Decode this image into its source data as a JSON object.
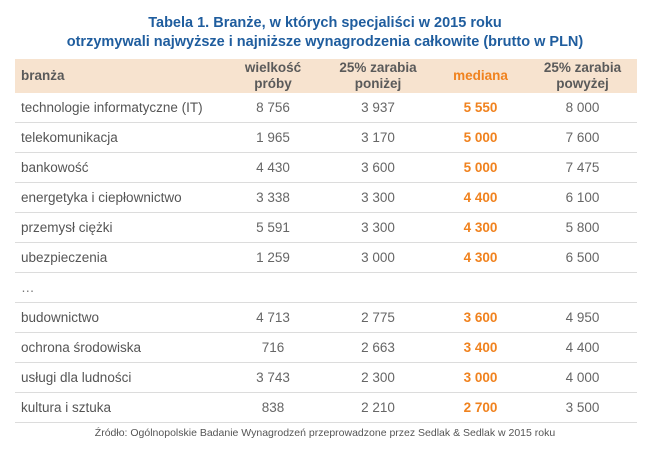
{
  "title": {
    "line1": "Tabela 1. Branże, w których specjaliści w 2015 roku",
    "line2": "otrzymywali najwyższe i najniższe wynagrodzenia całkowite (brutto w PLN)"
  },
  "table": {
    "headers": [
      "branża",
      "wielkość\npróby",
      "25% zarabia\nponiżej",
      "mediana",
      "25% zarabia\npowyżej"
    ],
    "rows": [
      [
        "technologie informatyczne (IT)",
        "8 756",
        "3 937",
        "5 550",
        "8 000"
      ],
      [
        "telekomunikacja",
        "1 965",
        "3 170",
        "5 000",
        "7 600"
      ],
      [
        "bankowość",
        "4 430",
        "3 600",
        "5 000",
        "7 475"
      ],
      [
        "energetyka i ciepłownictwo",
        "3 338",
        "3 300",
        "4 400",
        "6 100"
      ],
      [
        "przemysł ciężki",
        "5 591",
        "3 300",
        "4 300",
        "5 800"
      ],
      [
        "ubezpieczenia",
        "1 259",
        "3 000",
        "4 300",
        "6 500"
      ],
      [
        "…",
        "",
        "",
        "",
        ""
      ],
      [
        "budownictwo",
        "4 713",
        "2 775",
        "3 600",
        "4 950"
      ],
      [
        "ochrona środowiska",
        "716",
        "2 663",
        "3 400",
        "4 400"
      ],
      [
        "usługi dla ludności",
        "3 743",
        "2 300",
        "3 000",
        "4 000"
      ],
      [
        "kultura i sztuka",
        "838",
        "2 210",
        "2 700",
        "3 500"
      ]
    ]
  },
  "source": "Źródło: Ogólnopolskie Badanie Wynagrodzeń przeprowadzone przez Sedlak & Sedlak w 2015 roku",
  "colors": {
    "title": "#1f5d9e",
    "header_bg": "#f7e3cf",
    "median": "#f0821e",
    "text": "#666666",
    "row_border": "#dcdcdc"
  }
}
